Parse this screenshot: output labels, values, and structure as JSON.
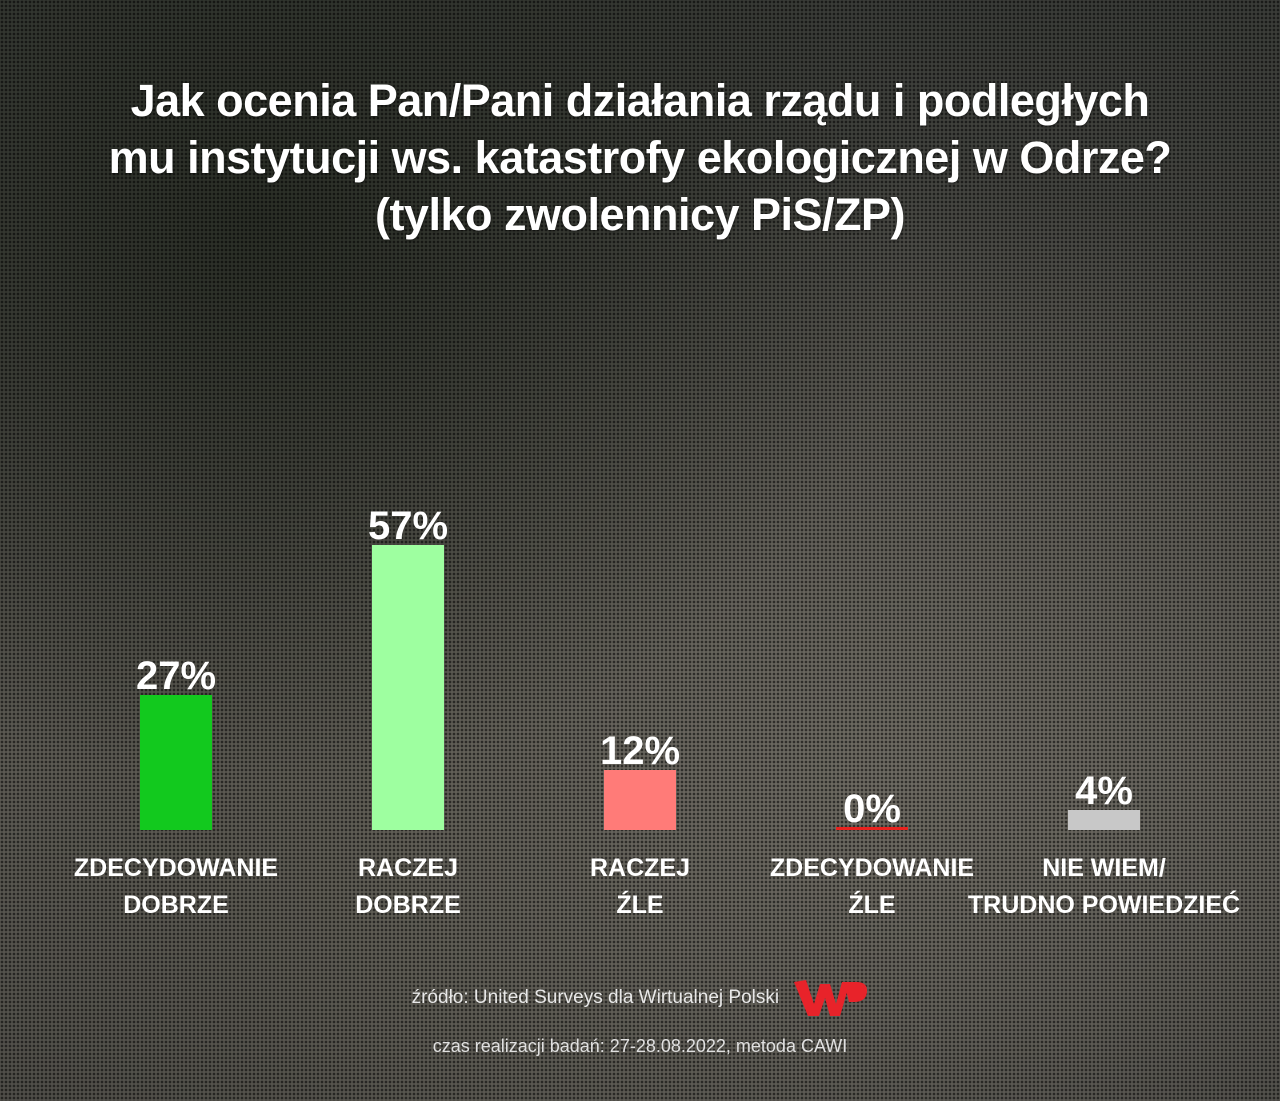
{
  "chart_data": {
    "type": "bar",
    "title": [
      "Jak ocenia Pan/Pani działania rządu i podległych",
      "mu instytucji ws. katastrofy ekologicznej w Odrze?",
      "(tylko zwolennicy PiS/ZP)"
    ],
    "categories": [
      [
        "ZDECYDOWANIE",
        "DOBRZE"
      ],
      [
        "RACZEJ",
        "DOBRZE"
      ],
      [
        "RACZEJ",
        "ŹLE"
      ],
      [
        "ZDECYDOWANIE",
        "ŹLE"
      ],
      [
        "NIE WIEM/",
        "TRUDNO POWIEDZIEĆ"
      ]
    ],
    "values": [
      27,
      57,
      12,
      0,
      4
    ],
    "data_labels": [
      "27%",
      "57%",
      "12%",
      "0%",
      "4%"
    ],
    "colors": [
      "#12c91e",
      "#9effa0",
      "#ff7b78",
      "#e8231f",
      "#c8c8c8"
    ],
    "unit": "%",
    "ylim": [
      0,
      57
    ],
    "grid": false
  },
  "footer": {
    "source": "źródło: United Surveys dla Wirtualnej Polski",
    "logo": "WP",
    "logo_color": "#e8232a",
    "method": "czas realizacji badań: 27-28.08.2022, metoda CAWI"
  }
}
